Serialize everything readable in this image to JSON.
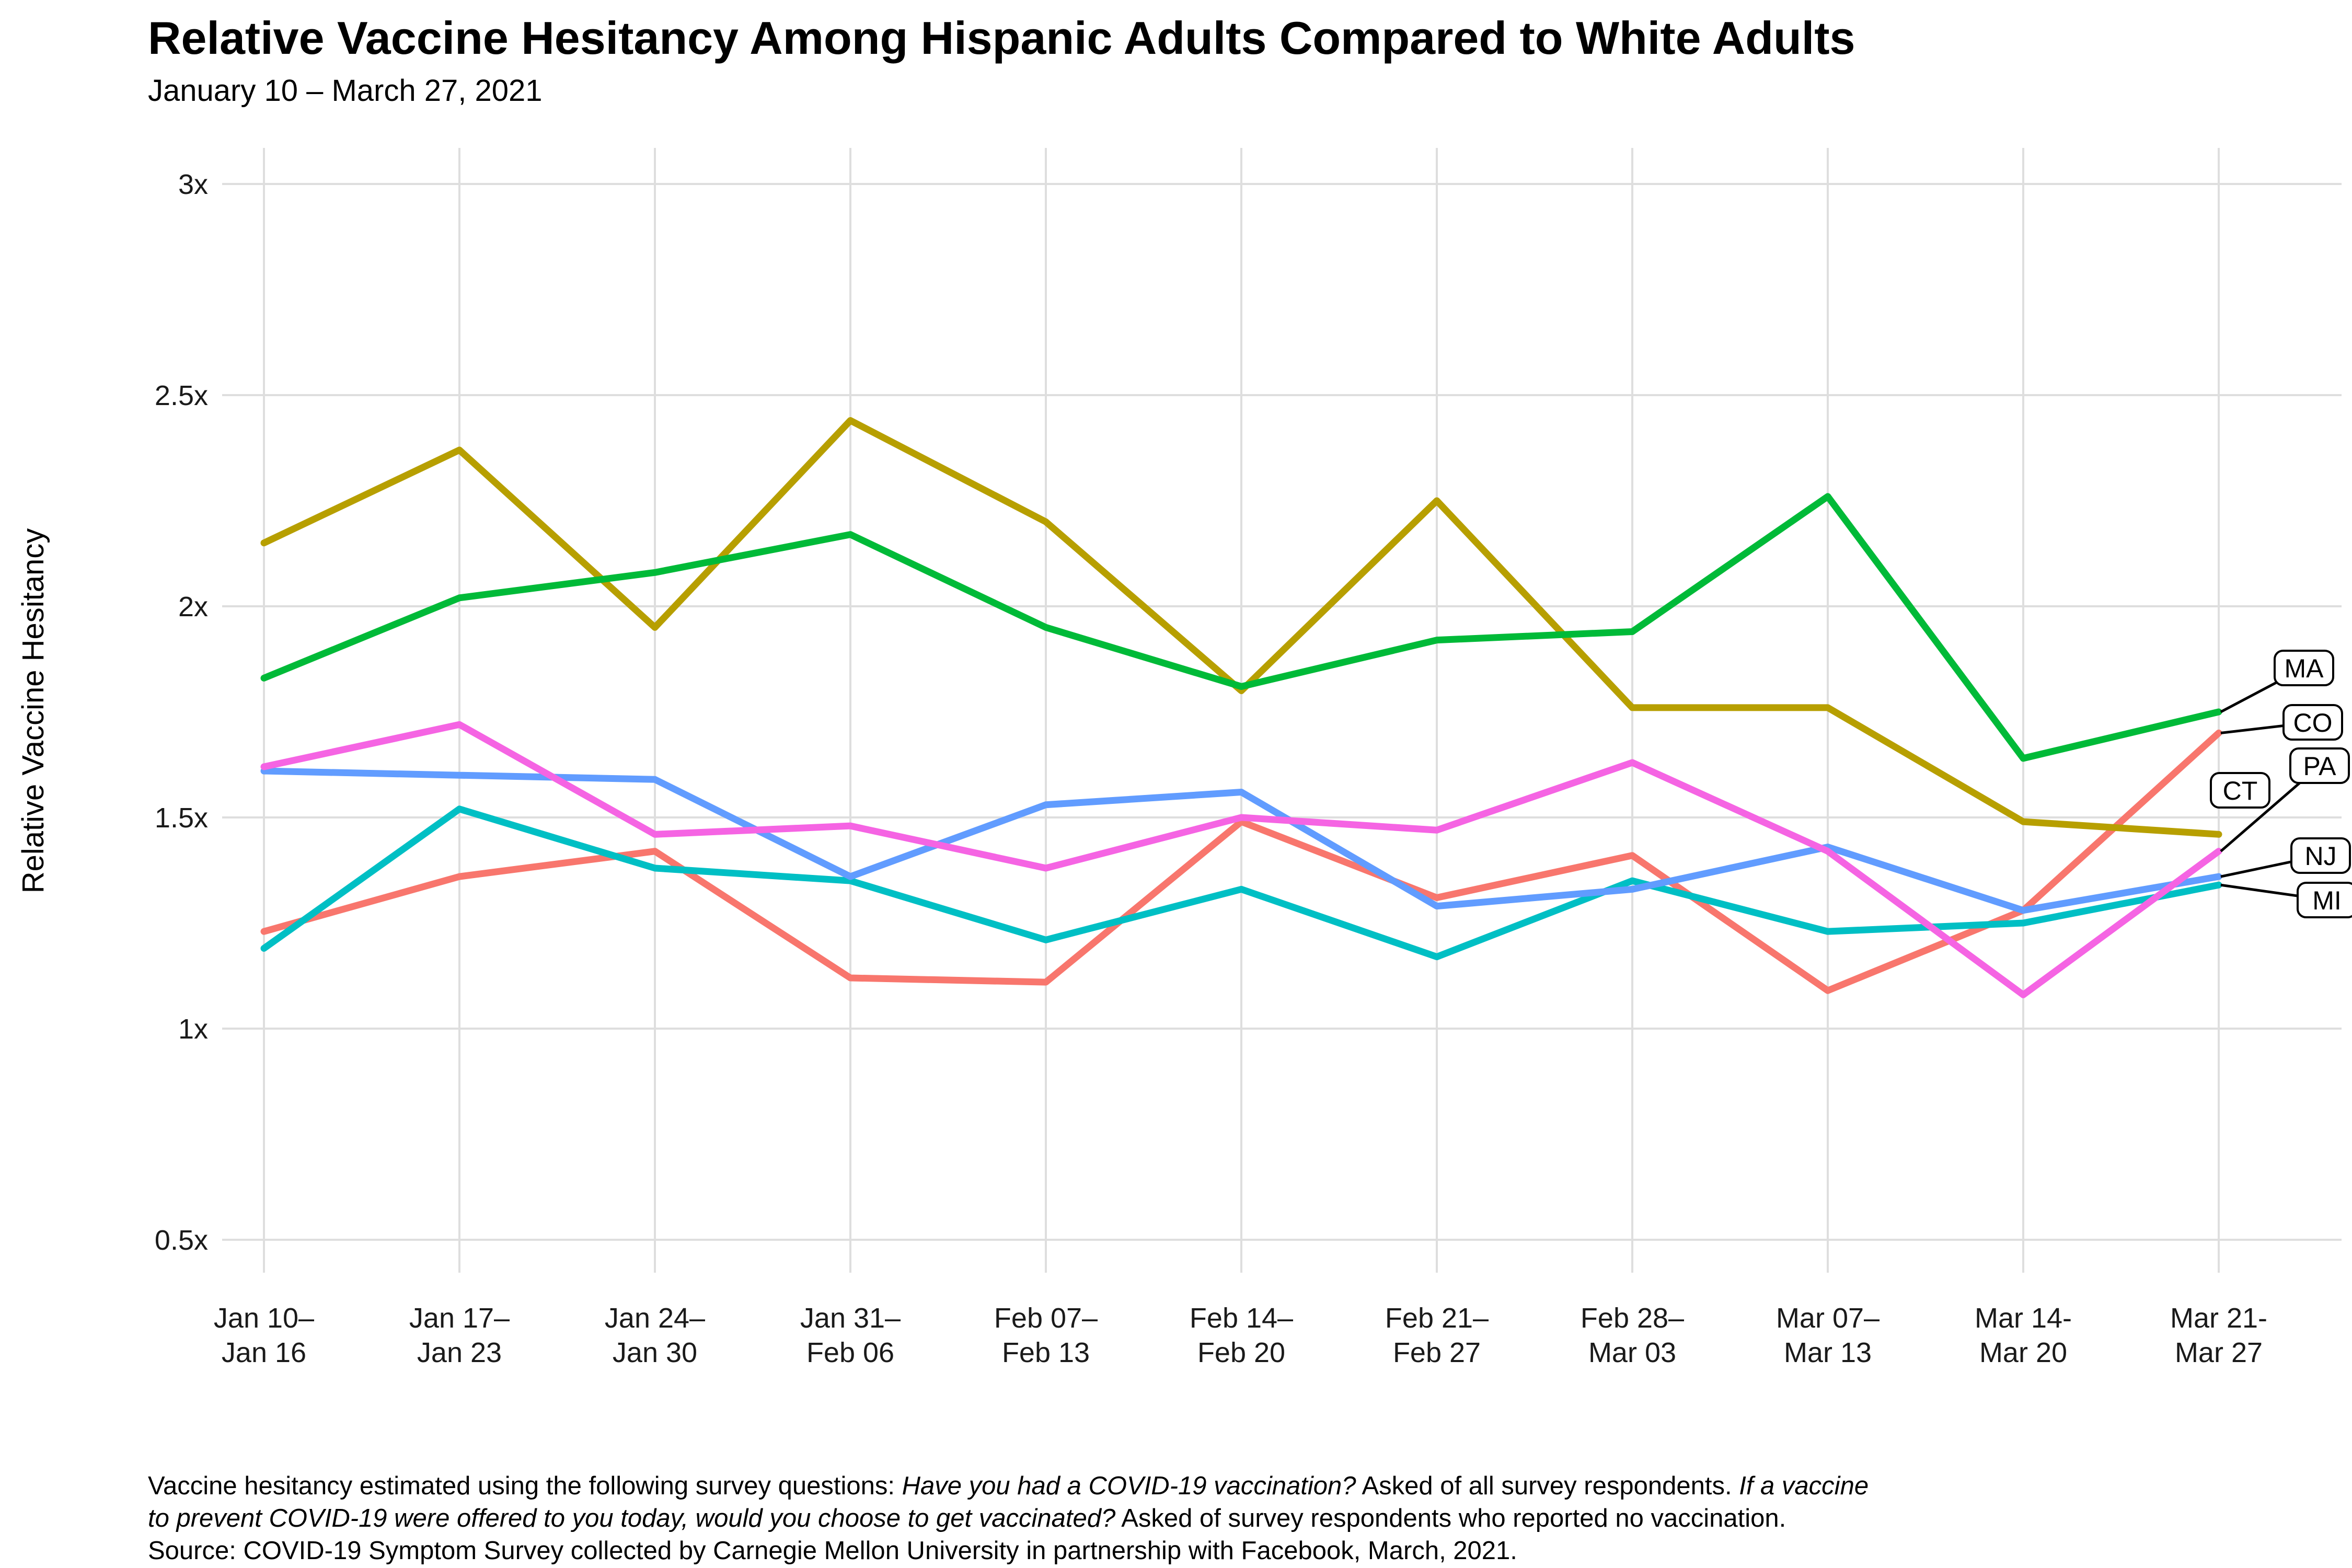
{
  "header": {
    "title": "Relative Vaccine Hesitancy Among Hispanic Adults Compared to White Adults",
    "subtitle": "January 10 – March 27, 2021"
  },
  "chart_data": {
    "type": "line",
    "title": "Relative Vaccine Hesitancy Among Hispanic Adults Compared to White Adults",
    "subtitle": "January 10 – March 27, 2021",
    "xlabel": "",
    "ylabel": "Relative Vaccine Hesitancy",
    "ylim": [
      0.5,
      3
    ],
    "grid": "major gridlines only, light gray on white panel",
    "legend_position": "series labels in rounded boxes at right edge with leader lines",
    "categories": [
      "Jan 10–Jan 16",
      "Jan 17–Jan 23",
      "Jan 24–Jan 30",
      "Jan 31–Feb 06",
      "Feb 07–Feb 13",
      "Feb 14–Feb 20",
      "Feb 21–Feb 27",
      "Feb 28–Mar 03",
      "Mar 07–Mar 13",
      "Mar 14-Mar 20",
      "Mar 21-Mar 27"
    ],
    "x_tick_labels": [
      [
        "Jan 10–",
        "Jan 16"
      ],
      [
        "Jan 17–",
        "Jan 23"
      ],
      [
        "Jan 24–",
        "Jan 30"
      ],
      [
        "Jan 31–",
        "Feb 06"
      ],
      [
        "Feb 07–",
        "Feb 13"
      ],
      [
        "Feb 14–",
        "Feb 20"
      ],
      [
        "Feb 21–",
        "Feb 27"
      ],
      [
        "Feb 28–",
        "Mar 03"
      ],
      [
        "Mar 07–",
        "Mar 13"
      ],
      [
        "Mar 14-",
        "Mar 20"
      ],
      [
        "Mar 21-",
        "Mar 27"
      ]
    ],
    "y_ticks": [
      {
        "label": "0.5x",
        "value": 0.5
      },
      {
        "label": "1x",
        "value": 1
      },
      {
        "label": "1.5x",
        "value": 1.5
      },
      {
        "label": "2x",
        "value": 2
      },
      {
        "label": "2.5x",
        "value": 2.5
      },
      {
        "label": "3x",
        "value": 3
      }
    ],
    "series": [
      {
        "name": "CO",
        "color": "#F8766D",
        "values": [
          1.23,
          1.36,
          1.42,
          1.12,
          1.11,
          1.49,
          1.31,
          1.41,
          1.09,
          1.28,
          1.7
        ]
      },
      {
        "name": "CT",
        "color": "#B79F00",
        "values": [
          2.15,
          2.37,
          1.95,
          2.44,
          2.2,
          1.8,
          2.25,
          1.76,
          1.76,
          1.49,
          1.46
        ]
      },
      {
        "name": "MA",
        "color": "#00BA38",
        "values": [
          1.83,
          2.02,
          2.08,
          2.17,
          1.95,
          1.81,
          1.92,
          1.94,
          2.26,
          1.64,
          1.75
        ]
      },
      {
        "name": "MI",
        "color": "#00BFC4",
        "values": [
          1.19,
          1.52,
          1.38,
          1.35,
          1.21,
          1.33,
          1.17,
          1.35,
          1.23,
          1.25,
          1.34
        ]
      },
      {
        "name": "NJ",
        "color": "#619CFF",
        "values": [
          1.61,
          1.6,
          1.59,
          1.36,
          1.53,
          1.56,
          1.29,
          1.33,
          1.43,
          1.28,
          1.36
        ]
      },
      {
        "name": "PA",
        "color": "#F564E3",
        "values": [
          1.62,
          1.72,
          1.46,
          1.48,
          1.38,
          1.5,
          1.47,
          1.63,
          1.42,
          1.08,
          1.42
        ]
      }
    ]
  },
  "footnote": {
    "l1_normal": "Vaccine hesitancy estimated using the following survey questions: ",
    "l1_italic": "Have you had a COVID-19 vaccination?",
    "l1_normal2": " Asked of all survey respondents. ",
    "l1_italic2": "If a vaccine",
    "l2_italic": "to prevent COVID-19 were offered to you today, would you choose to get vaccinated?",
    "l2_normal": " Asked of survey respondents who reported no vaccination.",
    "l3": "Source: COVID-19 Symptom Survey collected by Carnegie Mellon University in partnership with Facebook, March, 2021."
  }
}
